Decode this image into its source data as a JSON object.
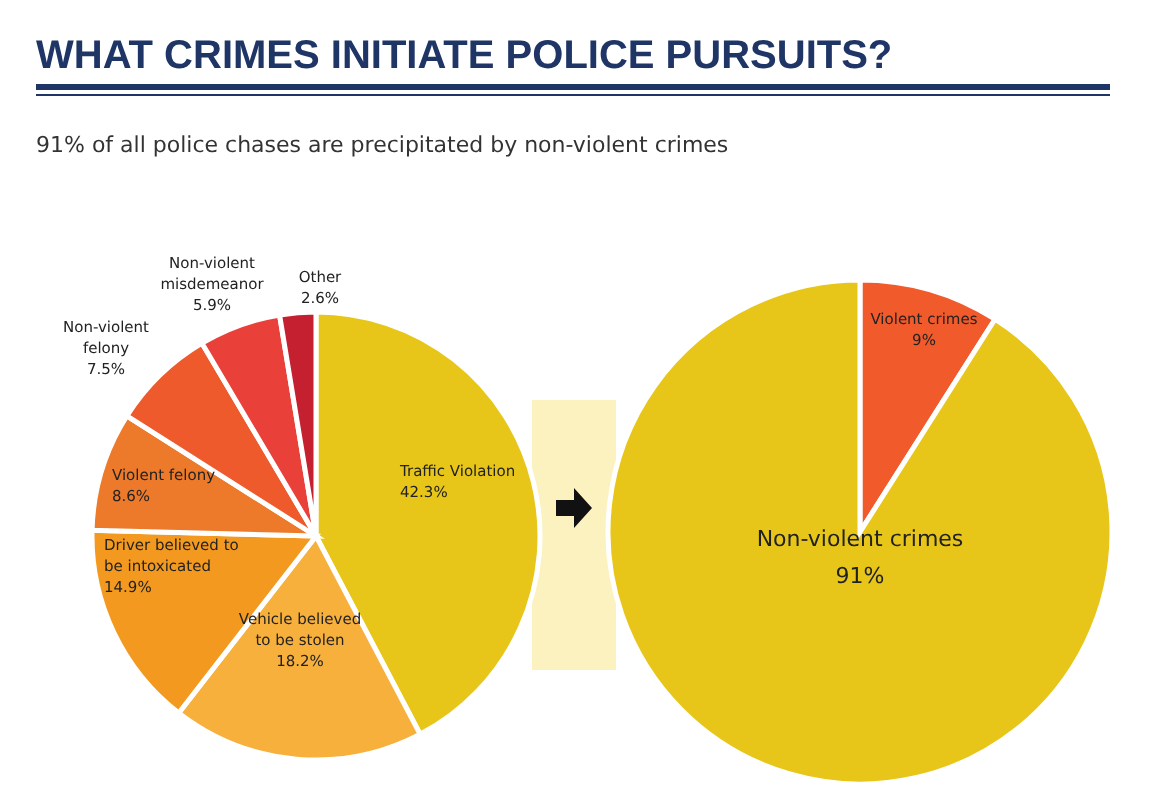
{
  "chart_data": [
    {
      "type": "pie",
      "title": "WHAT CRIMES INITIATE POLICE PURSUITS?",
      "subtitle": "91% of all police chases are precipitated by non-violent crimes",
      "categories": [
        "Traffic Violation",
        "Vehicle believed to be stolen",
        "Driver believed to be intoxicated",
        "Violent felony",
        "Non-violent felony",
        "Non-violent misdemeanor",
        "Other"
      ],
      "values": [
        42.3,
        18.2,
        14.9,
        8.6,
        7.5,
        5.9,
        2.6
      ],
      "value_labels": [
        "42.3%",
        "18.2%",
        "14.9%",
        "8.6%",
        "7.5%",
        "5.9%",
        "2.6%"
      ],
      "colors": [
        "#e8c619",
        "#f7b03c",
        "#f3991f",
        "#ec7a2a",
        "#ee5a2b",
        "#e9413a",
        "#c4202f"
      ]
    },
    {
      "type": "pie",
      "categories": [
        "Violent crimes",
        "Non-violent crimes"
      ],
      "values": [
        9,
        91
      ],
      "value_labels": [
        "9%",
        "91%"
      ],
      "colors": [
        "#f15a2b",
        "#e8c619"
      ]
    }
  ]
}
